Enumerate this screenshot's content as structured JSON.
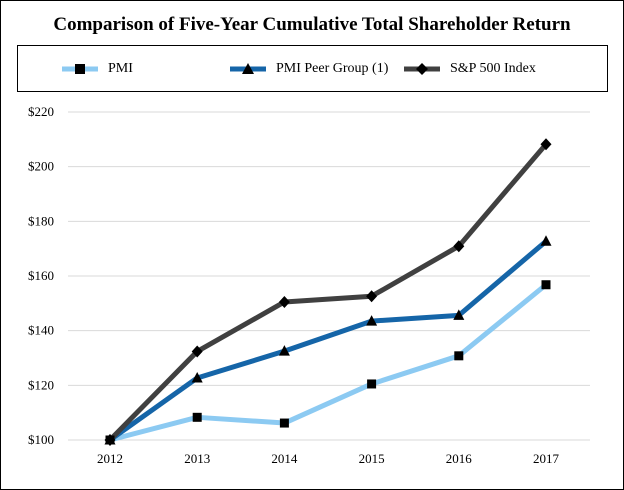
{
  "title": "Comparison of Five-Year Cumulative Total Shareholder Return",
  "colors": {
    "pmi": "#8ccaf2",
    "peer": "#1565a8",
    "sp500": "#404040",
    "grid": "#d9d9d9",
    "frame": "#000000"
  },
  "chart_data": {
    "type": "line",
    "title": "Comparison of Five-Year Cumulative Total Shareholder Return",
    "xlabel": "",
    "ylabel": "",
    "x": [
      "2012",
      "2013",
      "2014",
      "2015",
      "2016",
      "2017"
    ],
    "ylim": [
      100,
      220
    ],
    "yticks": [
      100,
      120,
      140,
      160,
      180,
      200,
      220
    ],
    "ytick_labels": [
      "$100",
      "$120",
      "$140",
      "$160",
      "$180",
      "$200",
      "$220"
    ],
    "grid": true,
    "legend_position": "top",
    "series": [
      {
        "name": "PMI",
        "marker": "square",
        "color": "#8ccaf2",
        "values": [
          100,
          108.3,
          106.2,
          120.5,
          130.8,
          156.8
        ]
      },
      {
        "name": "PMI Peer Group (1)",
        "marker": "triangle",
        "color": "#1565a8",
        "values": [
          100,
          122.7,
          132.5,
          143.5,
          145.6,
          172.7
        ]
      },
      {
        "name": "S&P 500 Index",
        "marker": "diamond",
        "color": "#404040",
        "values": [
          100,
          132.4,
          150.5,
          152.6,
          170.9,
          208.2
        ]
      }
    ]
  }
}
